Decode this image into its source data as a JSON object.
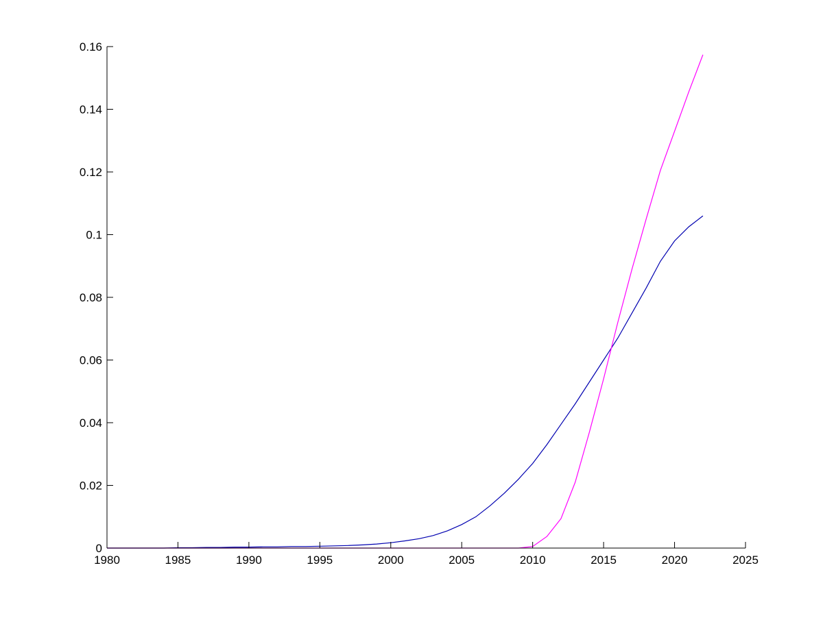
{
  "chart_data": {
    "type": "line",
    "title": "",
    "xlabel": "",
    "ylabel": "",
    "xlim": [
      1980,
      2025
    ],
    "ylim": [
      0,
      0.16
    ],
    "grid": false,
    "xticks": [
      "1980",
      "1985",
      "1990",
      "1995",
      "2000",
      "2005",
      "2010",
      "2015",
      "2020",
      "2025"
    ],
    "yticks": [
      "0",
      "0.02",
      "0.04",
      "0.06",
      "0.08",
      "0.1",
      "0.12",
      "0.14",
      "0.16"
    ],
    "x": [
      1980,
      1981,
      1982,
      1983,
      1984,
      1985,
      1986,
      1987,
      1988,
      1989,
      1990,
      1991,
      1992,
      1993,
      1994,
      1995,
      1996,
      1997,
      1998,
      1999,
      2000,
      2001,
      2002,
      2003,
      2004,
      2005,
      2006,
      2007,
      2008,
      2009,
      2010,
      2011,
      2012,
      2013,
      2014,
      2015,
      2016,
      2017,
      2018,
      2019,
      2020,
      2021,
      2022
    ],
    "series": [
      {
        "color": "#0000b0",
        "values": [
          0,
          0,
          0,
          0,
          0,
          0.0001,
          0.0001,
          0.0002,
          0.0002,
          0.0003,
          0.0003,
          0.0004,
          0.0004,
          0.0005,
          0.0005,
          0.0006,
          0.0007,
          0.0008,
          0.001,
          0.0013,
          0.0017,
          0.0023,
          0.003,
          0.004,
          0.0055,
          0.0075,
          0.01,
          0.0135,
          0.0175,
          0.022,
          0.027,
          0.033,
          0.0395,
          0.046,
          0.053,
          0.06,
          0.067,
          0.075,
          0.083,
          0.0915,
          0.098,
          0.1025,
          0.106
        ]
      },
      {
        "color": "#ff00ff",
        "values": [
          0,
          0,
          0,
          0,
          0,
          0,
          0,
          0,
          0,
          0,
          0,
          0,
          0,
          0,
          0,
          0,
          0,
          0,
          0,
          0,
          0,
          0,
          0,
          0,
          0,
          0,
          0,
          0,
          0,
          0,
          0.0005,
          0.0037,
          0.0094,
          0.021,
          0.037,
          0.054,
          0.072,
          0.089,
          0.105,
          0.1205,
          0.133,
          0.1455,
          0.1574
        ]
      }
    ]
  }
}
